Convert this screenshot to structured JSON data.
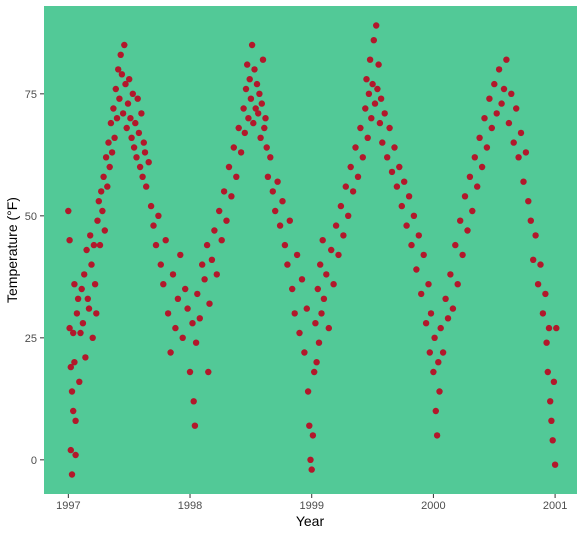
{
  "chart_data": {
    "type": "scatter",
    "title": "",
    "xlabel": "Year",
    "ylabel": "Temperature (°F)",
    "xlim": [
      1996.8,
      2001.18
    ],
    "ylim": [
      -7,
      93
    ],
    "x_ticks": [
      1997,
      1998,
      1999,
      2000,
      2001
    ],
    "x_tick_labels": [
      "1997",
      "1998",
      "1999",
      "2000",
      "2001"
    ],
    "y_ticks": [
      0,
      25,
      50,
      75
    ],
    "y_tick_labels": [
      "0",
      "25",
      "50",
      "75"
    ],
    "grid": false,
    "colors": {
      "panel_background": "#52C997",
      "point": "#B2182B"
    },
    "series": [
      {
        "points": [
          [
            1997.0,
            51
          ],
          [
            1997.01,
            45
          ],
          [
            1997.01,
            27
          ],
          [
            1997.02,
            2
          ],
          [
            1997.02,
            19
          ],
          [
            1997.03,
            -3
          ],
          [
            1997.03,
            14
          ],
          [
            1997.04,
            10
          ],
          [
            1997.04,
            26
          ],
          [
            1997.05,
            36
          ],
          [
            1997.05,
            20
          ],
          [
            1997.06,
            8
          ],
          [
            1997.06,
            1
          ],
          [
            1997.07,
            30
          ],
          [
            1997.08,
            33
          ],
          [
            1997.09,
            16
          ],
          [
            1997.1,
            26
          ],
          [
            1997.11,
            35
          ],
          [
            1997.12,
            28
          ],
          [
            1997.13,
            38
          ],
          [
            1997.14,
            21
          ],
          [
            1997.15,
            43
          ],
          [
            1997.16,
            33
          ],
          [
            1997.17,
            31
          ],
          [
            1997.18,
            46
          ],
          [
            1997.19,
            40
          ],
          [
            1997.2,
            25
          ],
          [
            1997.21,
            44
          ],
          [
            1997.22,
            36
          ],
          [
            1997.23,
            30
          ],
          [
            1997.24,
            49
          ],
          [
            1997.25,
            53
          ],
          [
            1997.26,
            44
          ],
          [
            1997.27,
            55
          ],
          [
            1997.28,
            51
          ],
          [
            1997.29,
            58
          ],
          [
            1997.3,
            47
          ],
          [
            1997.31,
            62
          ],
          [
            1997.32,
            56
          ],
          [
            1997.33,
            65
          ],
          [
            1997.34,
            60
          ],
          [
            1997.35,
            69
          ],
          [
            1997.36,
            63
          ],
          [
            1997.37,
            72
          ],
          [
            1997.38,
            66
          ],
          [
            1997.39,
            76
          ],
          [
            1997.4,
            70
          ],
          [
            1997.41,
            80
          ],
          [
            1997.42,
            74
          ],
          [
            1997.43,
            83
          ],
          [
            1997.44,
            79
          ],
          [
            1997.45,
            71
          ],
          [
            1997.46,
            85
          ],
          [
            1997.47,
            77
          ],
          [
            1997.48,
            68
          ],
          [
            1997.49,
            73
          ],
          [
            1997.5,
            78
          ],
          [
            1997.51,
            70
          ],
          [
            1997.52,
            66
          ],
          [
            1997.53,
            75
          ],
          [
            1997.54,
            64
          ],
          [
            1997.55,
            69
          ],
          [
            1997.56,
            62
          ],
          [
            1997.57,
            74
          ],
          [
            1997.58,
            67
          ],
          [
            1997.59,
            60
          ],
          [
            1997.6,
            71
          ],
          [
            1997.61,
            58
          ],
          [
            1997.62,
            65
          ],
          [
            1997.63,
            63
          ],
          [
            1997.64,
            56
          ],
          [
            1997.66,
            61
          ],
          [
            1997.68,
            52
          ],
          [
            1997.7,
            48
          ],
          [
            1997.72,
            44
          ],
          [
            1997.74,
            50
          ],
          [
            1997.76,
            40
          ],
          [
            1997.78,
            36
          ],
          [
            1997.8,
            45
          ],
          [
            1997.82,
            30
          ],
          [
            1997.84,
            22
          ],
          [
            1997.86,
            38
          ],
          [
            1997.88,
            27
          ],
          [
            1997.9,
            33
          ],
          [
            1997.92,
            42
          ],
          [
            1997.94,
            25
          ],
          [
            1997.96,
            35
          ],
          [
            1997.98,
            31
          ],
          [
            1998.0,
            18
          ],
          [
            1998.02,
            28
          ],
          [
            1998.03,
            12
          ],
          [
            1998.04,
            7
          ],
          [
            1998.05,
            24
          ],
          [
            1998.06,
            34
          ],
          [
            1998.08,
            29
          ],
          [
            1998.1,
            40
          ],
          [
            1998.12,
            37
          ],
          [
            1998.14,
            44
          ],
          [
            1998.15,
            18
          ],
          [
            1998.16,
            32
          ],
          [
            1998.18,
            41
          ],
          [
            1998.2,
            47
          ],
          [
            1998.22,
            38
          ],
          [
            1998.24,
            51
          ],
          [
            1998.26,
            45
          ],
          [
            1998.28,
            55
          ],
          [
            1998.3,
            49
          ],
          [
            1998.32,
            60
          ],
          [
            1998.34,
            54
          ],
          [
            1998.36,
            64
          ],
          [
            1998.38,
            58
          ],
          [
            1998.4,
            68
          ],
          [
            1998.42,
            63
          ],
          [
            1998.44,
            72
          ],
          [
            1998.45,
            67
          ],
          [
            1998.46,
            76
          ],
          [
            1998.47,
            81
          ],
          [
            1998.48,
            70
          ],
          [
            1998.49,
            78
          ],
          [
            1998.5,
            74
          ],
          [
            1998.51,
            85
          ],
          [
            1998.52,
            69
          ],
          [
            1998.53,
            80
          ],
          [
            1998.54,
            72
          ],
          [
            1998.55,
            77
          ],
          [
            1998.56,
            71
          ],
          [
            1998.57,
            75
          ],
          [
            1998.58,
            66
          ],
          [
            1998.59,
            73
          ],
          [
            1998.6,
            82
          ],
          [
            1998.61,
            68
          ],
          [
            1998.62,
            70
          ],
          [
            1998.63,
            64
          ],
          [
            1998.64,
            58
          ],
          [
            1998.66,
            62
          ],
          [
            1998.68,
            55
          ],
          [
            1998.7,
            51
          ],
          [
            1998.72,
            57
          ],
          [
            1998.74,
            48
          ],
          [
            1998.76,
            53
          ],
          [
            1998.78,
            44
          ],
          [
            1998.8,
            40
          ],
          [
            1998.82,
            49
          ],
          [
            1998.84,
            35
          ],
          [
            1998.86,
            30
          ],
          [
            1998.88,
            42
          ],
          [
            1998.9,
            26
          ],
          [
            1998.92,
            37
          ],
          [
            1998.94,
            22
          ],
          [
            1998.96,
            31
          ],
          [
            1998.97,
            14
          ],
          [
            1998.98,
            7
          ],
          [
            1998.99,
            0
          ],
          [
            1999.0,
            -2
          ],
          [
            1999.01,
            5
          ],
          [
            1999.02,
            18
          ],
          [
            1999.03,
            28
          ],
          [
            1999.04,
            20
          ],
          [
            1999.05,
            35
          ],
          [
            1999.06,
            24
          ],
          [
            1999.07,
            40
          ],
          [
            1999.08,
            30
          ],
          [
            1999.09,
            45
          ],
          [
            1999.1,
            33
          ],
          [
            1999.12,
            38
          ],
          [
            1999.14,
            27
          ],
          [
            1999.16,
            43
          ],
          [
            1999.18,
            36
          ],
          [
            1999.2,
            48
          ],
          [
            1999.22,
            42
          ],
          [
            1999.24,
            52
          ],
          [
            1999.26,
            46
          ],
          [
            1999.28,
            56
          ],
          [
            1999.3,
            50
          ],
          [
            1999.32,
            60
          ],
          [
            1999.34,
            55
          ],
          [
            1999.36,
            64
          ],
          [
            1999.38,
            58
          ],
          [
            1999.4,
            68
          ],
          [
            1999.42,
            62
          ],
          [
            1999.44,
            72
          ],
          [
            1999.45,
            78
          ],
          [
            1999.46,
            66
          ],
          [
            1999.47,
            75
          ],
          [
            1999.48,
            82
          ],
          [
            1999.49,
            70
          ],
          [
            1999.5,
            77
          ],
          [
            1999.51,
            86
          ],
          [
            1999.52,
            73
          ],
          [
            1999.53,
            89
          ],
          [
            1999.54,
            76
          ],
          [
            1999.55,
            81
          ],
          [
            1999.56,
            69
          ],
          [
            1999.57,
            74
          ],
          [
            1999.58,
            65
          ],
          [
            1999.6,
            71
          ],
          [
            1999.62,
            62
          ],
          [
            1999.64,
            68
          ],
          [
            1999.66,
            59
          ],
          [
            1999.68,
            64
          ],
          [
            1999.7,
            56
          ],
          [
            1999.72,
            60
          ],
          [
            1999.74,
            52
          ],
          [
            1999.76,
            57
          ],
          [
            1999.78,
            48
          ],
          [
            1999.8,
            54
          ],
          [
            1999.82,
            44
          ],
          [
            1999.84,
            50
          ],
          [
            1999.86,
            39
          ],
          [
            1999.88,
            46
          ],
          [
            1999.9,
            34
          ],
          [
            1999.92,
            42
          ],
          [
            1999.94,
            28
          ],
          [
            1999.96,
            36
          ],
          [
            1999.97,
            22
          ],
          [
            1999.98,
            30
          ],
          [
            2000.0,
            18
          ],
          [
            2000.01,
            25
          ],
          [
            2000.02,
            10
          ],
          [
            2000.03,
            5
          ],
          [
            2000.04,
            20
          ],
          [
            2000.05,
            14
          ],
          [
            2000.06,
            27
          ],
          [
            2000.08,
            22
          ],
          [
            2000.1,
            33
          ],
          [
            2000.12,
            29
          ],
          [
            2000.14,
            38
          ],
          [
            2000.16,
            31
          ],
          [
            2000.18,
            44
          ],
          [
            2000.2,
            36
          ],
          [
            2000.22,
            49
          ],
          [
            2000.24,
            42
          ],
          [
            2000.26,
            54
          ],
          [
            2000.28,
            47
          ],
          [
            2000.3,
            58
          ],
          [
            2000.32,
            51
          ],
          [
            2000.34,
            62
          ],
          [
            2000.36,
            56
          ],
          [
            2000.38,
            66
          ],
          [
            2000.4,
            60
          ],
          [
            2000.42,
            70
          ],
          [
            2000.44,
            64
          ],
          [
            2000.46,
            74
          ],
          [
            2000.48,
            68
          ],
          [
            2000.5,
            77
          ],
          [
            2000.52,
            71
          ],
          [
            2000.54,
            80
          ],
          [
            2000.56,
            73
          ],
          [
            2000.58,
            76
          ],
          [
            2000.6,
            82
          ],
          [
            2000.62,
            69
          ],
          [
            2000.64,
            75
          ],
          [
            2000.66,
            65
          ],
          [
            2000.68,
            72
          ],
          [
            2000.7,
            62
          ],
          [
            2000.72,
            67
          ],
          [
            2000.74,
            57
          ],
          [
            2000.76,
            63
          ],
          [
            2000.78,
            53
          ],
          [
            2000.8,
            49
          ],
          [
            2000.82,
            41
          ],
          [
            2000.84,
            46
          ],
          [
            2000.86,
            36
          ],
          [
            2000.88,
            40
          ],
          [
            2000.9,
            30
          ],
          [
            2000.92,
            34
          ],
          [
            2000.93,
            24
          ],
          [
            2000.94,
            18
          ],
          [
            2000.95,
            27
          ],
          [
            2000.96,
            12
          ],
          [
            2000.97,
            8
          ],
          [
            2000.98,
            4
          ],
          [
            2000.99,
            16
          ],
          [
            2001.0,
            -1
          ],
          [
            2001.01,
            27
          ]
        ]
      }
    ]
  }
}
